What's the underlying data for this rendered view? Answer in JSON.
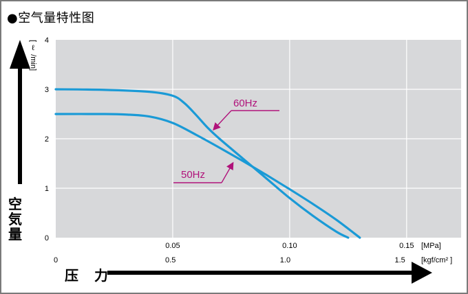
{
  "title": "●空气量特性图",
  "y_axis_title": "空気量",
  "x_axis_title": "压 力",
  "chart_data": {
    "type": "line",
    "ylabel_unit": "[ ℓ /min]",
    "ylim": [
      0,
      4
    ],
    "xlim": [
      0,
      0.1733
    ],
    "y_ticks": [
      "0",
      "1",
      "2",
      "3",
      "4"
    ],
    "x_ticks_mpa": [
      "0.05",
      "0.10",
      "0.15"
    ],
    "x_ticks_kgf": [
      "0",
      "0.5",
      "1.0",
      "1.5"
    ],
    "x_unit_mpa": "[MPa]",
    "x_unit_kgf": "[kgf/cm² ]",
    "grid": true,
    "series": [
      {
        "name": "60Hz",
        "color": "#1a9ad6",
        "x": [
          0,
          0.02,
          0.04,
          0.05,
          0.055,
          0.06,
          0.065,
          0.07,
          0.08,
          0.09,
          0.1,
          0.11,
          0.12,
          0.125
        ],
        "y": [
          3.0,
          2.99,
          2.95,
          2.87,
          2.72,
          2.48,
          2.22,
          2.0,
          1.6,
          1.2,
          0.8,
          0.44,
          0.12,
          0.0
        ]
      },
      {
        "name": "50Hz",
        "color": "#1a9ad6",
        "x": [
          0,
          0.02,
          0.03,
          0.04,
          0.05,
          0.06,
          0.07,
          0.08,
          0.09,
          0.1,
          0.11,
          0.12,
          0.13
        ],
        "y": [
          2.5,
          2.5,
          2.49,
          2.45,
          2.32,
          2.08,
          1.82,
          1.55,
          1.27,
          0.98,
          0.68,
          0.36,
          0.0
        ]
      }
    ],
    "annotations": [
      {
        "text": "60Hz",
        "color": "#b0127a"
      },
      {
        "text": "50Hz",
        "color": "#b0127a"
      }
    ]
  }
}
